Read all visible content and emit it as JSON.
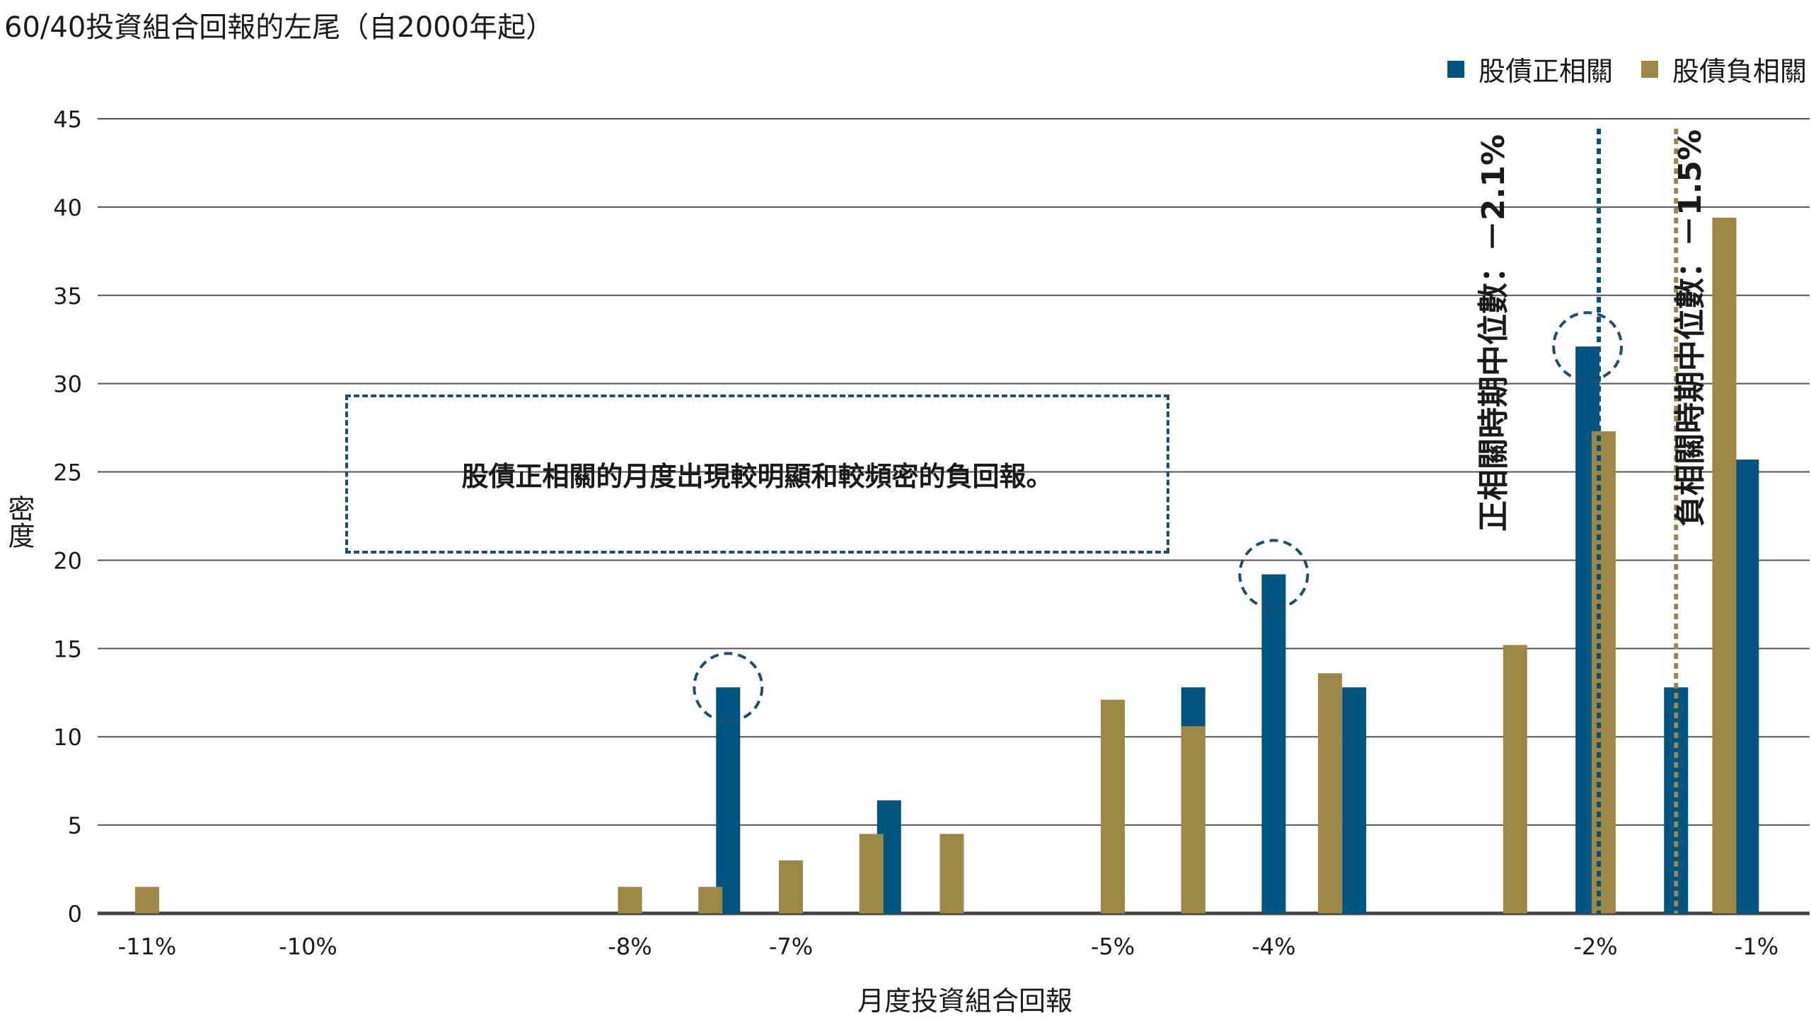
{
  "title": "60/40投資組合回報的左尾（自2000年起）",
  "colors": {
    "positive": "#005480",
    "negative": "#9C8744",
    "grid": "#555555",
    "circle": "#1d4e6e"
  },
  "legend": [
    {
      "label": "股債正相關",
      "color": "#005480"
    },
    {
      "label": "股債負相關",
      "color": "#9C8744"
    }
  ],
  "annotation": "股債正相關的月度出現較明顯和較頻密的負回報。",
  "medians": [
    {
      "label": "正相關時期中位數：－2.1%",
      "x": -1.98,
      "color": "#005480"
    },
    {
      "label": "負相關時期中位數：－1.5%",
      "x": -1.5,
      "color": "#9C8744"
    }
  ],
  "chart_data": {
    "type": "bar",
    "xlabel": "月度投資組合回報",
    "ylabel": "密度",
    "ylim": [
      0,
      45
    ],
    "yticks": [
      0,
      5,
      10,
      15,
      20,
      25,
      30,
      35,
      40,
      45
    ],
    "xlim": [
      -11.1,
      -0.9
    ],
    "xticks": [
      {
        "value": -11,
        "label": "-11%"
      },
      {
        "value": -10,
        "label": "-10%"
      },
      {
        "value": -8,
        "label": "-8%"
      },
      {
        "value": -7,
        "label": "-7%"
      },
      {
        "value": -5,
        "label": "-5%"
      },
      {
        "value": -4,
        "label": "-4%"
      },
      {
        "value": -2,
        "label": "-2%"
      },
      {
        "value": -1,
        "label": "-1%"
      }
    ],
    "series": [
      {
        "name": "股債正相關",
        "color": "#005480",
        "points": [
          {
            "x": -7.39,
            "y": 12.8,
            "highlight": true
          },
          {
            "x": -6.39,
            "y": 6.4
          },
          {
            "x": -4.5,
            "y": 12.8
          },
          {
            "x": -4.0,
            "y": 19.2,
            "highlight": true
          },
          {
            "x": -3.5,
            "y": 12.8
          },
          {
            "x": -2.05,
            "y": 32.1,
            "highlight": true
          },
          {
            "x": -1.5,
            "y": 12.8
          },
          {
            "x": -1.06,
            "y": 25.7
          }
        ]
      },
      {
        "name": "股債負相關",
        "color": "#9C8744",
        "points": [
          {
            "x": -11.0,
            "y": 1.5
          },
          {
            "x": -8.0,
            "y": 1.5
          },
          {
            "x": -7.5,
            "y": 1.5
          },
          {
            "x": -7.0,
            "y": 3.0
          },
          {
            "x": -6.5,
            "y": 4.5
          },
          {
            "x": -6.0,
            "y": 4.5
          },
          {
            "x": -5.0,
            "y": 12.1
          },
          {
            "x": -4.5,
            "y": 10.6
          },
          {
            "x": -3.65,
            "y": 13.6
          },
          {
            "x": -2.5,
            "y": 15.2
          },
          {
            "x": -1.95,
            "y": 27.3
          },
          {
            "x": -1.2,
            "y": 39.4
          }
        ]
      }
    ]
  }
}
